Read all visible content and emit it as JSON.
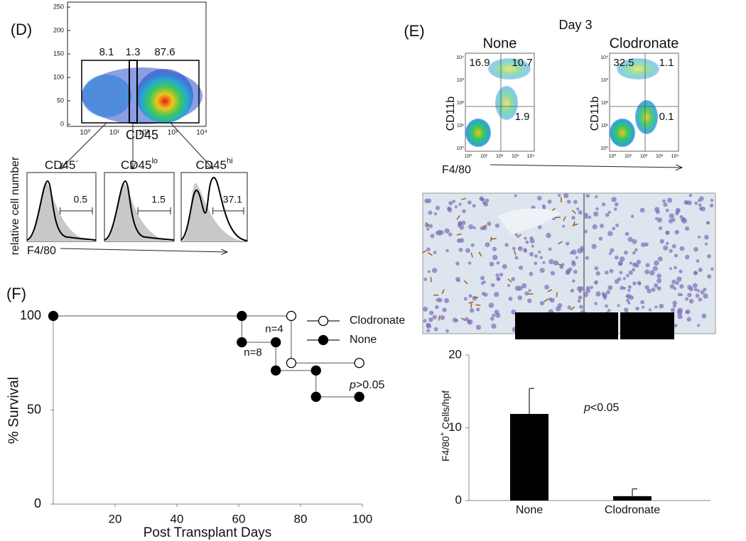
{
  "panel_d": {
    "label": "(D)",
    "dotplot": {
      "xlabel": "CD45",
      "yticks": [
        0,
        50,
        100,
        150,
        200,
        250
      ],
      "xticks": [
        "10⁰",
        "10¹",
        "10²",
        "10³",
        "10⁴"
      ],
      "gates": [
        8.1,
        1.3,
        87.6
      ]
    },
    "histograms": [
      {
        "title": {
          "base": "CD45",
          "sup": "-"
        },
        "value": 0.5
      },
      {
        "title": {
          "base": "CD45",
          "sup": "lo"
        },
        "value": 1.5
      },
      {
        "title": {
          "base": "CD45",
          "sup": "hi"
        },
        "value": 37.1
      }
    ],
    "ylabel": "relative cell number",
    "xlabel": "F4/80"
  },
  "panel_e": {
    "label": "(E)",
    "title": "Day 3",
    "ylabel": "CD11b",
    "xlabel": "F4/80",
    "ticks": [
      "10⁰",
      "10¹",
      "10²",
      "10³",
      "10⁴"
    ],
    "plots": [
      {
        "title": "None",
        "quadrants": [
          16.9,
          10.7,
          1.9
        ]
      },
      {
        "title": "Clodronate",
        "quadrants": [
          32.5,
          1.1,
          0.1
        ]
      }
    ]
  },
  "chart_data": [
    {
      "type": "line",
      "label": "(F)",
      "xlabel": "Post Transplant Days",
      "ylabel": "% Survival",
      "xlim": [
        0,
        100
      ],
      "ylim": [
        0,
        100
      ],
      "xticks": [
        20,
        40,
        60,
        80,
        100
      ],
      "yticks": [
        0,
        50,
        100
      ],
      "series": [
        {
          "name": "Clodronate",
          "marker": "open",
          "x": [
            0,
            77,
            77,
            99
          ],
          "values": [
            100,
            100,
            75,
            75
          ]
        },
        {
          "name": "None",
          "marker": "filled",
          "x": [
            0,
            61,
            61,
            72,
            72,
            85,
            85,
            99
          ],
          "values": [
            100,
            100,
            86,
            86,
            71,
            71,
            57,
            57
          ]
        }
      ],
      "annotations": [
        "n=8",
        "n=4",
        {
          "italic": "p",
          "text": ">0.05"
        }
      ]
    },
    {
      "type": "bar",
      "ylabel": {
        "base": "F4/80",
        "sup": "+",
        "rest": " Cells/hpf"
      },
      "categories": [
        "None",
        "Clodronate"
      ],
      "values": [
        11.9,
        0.6
      ],
      "errors": [
        3.5,
        1.0
      ],
      "color": "#000000",
      "ylim": [
        0,
        20
      ],
      "yticks": [
        0,
        10,
        20
      ],
      "annotation": {
        "italic": "p",
        "text": "<0.05"
      }
    }
  ]
}
